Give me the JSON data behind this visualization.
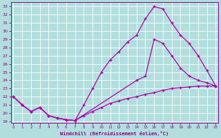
{
  "xlabel": "Windchill (Refroidissement éolien,°C)",
  "background_color": "#b2dede",
  "grid_color": "#ffffff",
  "line_color": "#aa00aa",
  "xlim_min": -0.3,
  "xlim_max": 23.3,
  "ylim_min": 18.8,
  "ylim_max": 33.5,
  "yticks": [
    19,
    20,
    21,
    22,
    23,
    24,
    25,
    26,
    27,
    28,
    29,
    30,
    31,
    32,
    33
  ],
  "xticks": [
    0,
    1,
    2,
    3,
    4,
    5,
    6,
    7,
    8,
    9,
    10,
    11,
    12,
    13,
    14,
    15,
    16,
    17,
    18,
    19,
    20,
    21,
    22,
    23
  ],
  "line1_x": [
    0,
    1,
    2,
    3,
    4,
    5,
    6,
    7,
    8,
    9,
    10,
    11,
    12,
    13,
    14,
    15,
    16,
    17,
    18,
    19,
    20,
    21,
    22,
    23
  ],
  "line1_y": [
    22.0,
    21.0,
    20.2,
    20.7,
    19.7,
    19.4,
    19.2,
    19.1,
    19.7,
    20.2,
    20.7,
    21.2,
    21.5,
    21.8,
    22.0,
    22.3,
    22.5,
    22.8,
    23.0,
    23.1,
    23.2,
    23.3,
    23.3,
    23.3
  ],
  "line2_x": [
    0,
    1,
    2,
    3,
    4,
    5,
    6,
    7,
    8,
    9,
    10,
    11,
    12,
    13,
    14,
    15,
    16,
    17,
    18,
    19,
    20,
    21,
    22,
    23
  ],
  "line2_y": [
    22.0,
    21.0,
    20.2,
    20.7,
    19.7,
    19.4,
    19.2,
    19.1,
    21.0,
    23.0,
    25.0,
    26.5,
    27.5,
    28.7,
    29.5,
    31.5,
    33.0,
    32.7,
    31.0,
    29.5,
    28.5,
    27.0,
    25.2,
    23.3
  ],
  "line3_x": [
    0,
    1,
    2,
    3,
    4,
    5,
    6,
    7,
    14,
    15,
    16,
    17,
    18,
    19,
    20,
    21,
    22,
    23
  ],
  "line3_y": [
    22.0,
    21.0,
    20.2,
    20.7,
    19.7,
    19.4,
    19.2,
    19.1,
    24.0,
    24.5,
    29.0,
    28.5,
    27.0,
    25.5,
    24.5,
    24.0,
    23.7,
    23.3
  ]
}
